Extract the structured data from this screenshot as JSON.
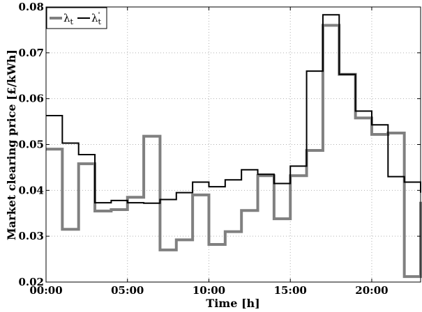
{
  "chart_data": {
    "type": "line",
    "step": "post",
    "xlabel": "Time [h]",
    "ylabel": "Market clearing price [£/kWh]",
    "xlim": [
      0,
      23
    ],
    "ylim": [
      0.02,
      0.08
    ],
    "x_ticks": [
      0,
      5,
      10,
      15,
      20
    ],
    "x_tick_labels": [
      "00:00",
      "05:00",
      "10:00",
      "15:00",
      "20:00"
    ],
    "y_ticks": [
      0.02,
      0.03,
      0.04,
      0.05,
      0.06,
      0.07,
      0.08
    ],
    "y_tick_labels": [
      "0.02",
      "0.03",
      "0.04",
      "0.05",
      "0.06",
      "0.07",
      "0.08"
    ],
    "grid": true,
    "legend_position": "top-left",
    "x": [
      0,
      1,
      2,
      3,
      4,
      5,
      6,
      7,
      8,
      9,
      10,
      11,
      12,
      13,
      14,
      15,
      16,
      17,
      18,
      19,
      20,
      21,
      22,
      23
    ],
    "series": [
      {
        "name": "λt",
        "legend_base": "λ",
        "legend_sub": "t",
        "legend_prime": "",
        "color": "#808080",
        "line_width": 4,
        "values": [
          0.049,
          0.0315,
          0.0458,
          0.0355,
          0.0358,
          0.0385,
          0.0518,
          0.027,
          0.0292,
          0.039,
          0.0282,
          0.031,
          0.0356,
          0.0432,
          0.0338,
          0.0432,
          0.0487,
          0.076,
          0.0653,
          0.0558,
          0.0522,
          0.0525,
          0.0212,
          0.0375
        ]
      },
      {
        "name": "λ't",
        "legend_base": "λ",
        "legend_sub": "t",
        "legend_prime": "'",
        "color": "#000000",
        "line_width": 2,
        "values": [
          0.0563,
          0.0503,
          0.0478,
          0.0373,
          0.0378,
          0.0373,
          0.0372,
          0.038,
          0.0395,
          0.0418,
          0.0408,
          0.0423,
          0.0445,
          0.0435,
          0.0415,
          0.0453,
          0.066,
          0.0783,
          0.0653,
          0.0573,
          0.0543,
          0.043,
          0.0418,
          0.0395
        ]
      }
    ]
  }
}
